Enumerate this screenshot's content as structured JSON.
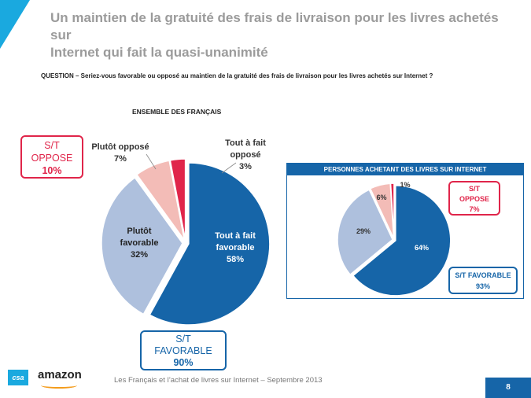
{
  "title_line1": "Un maintien de la gratuité des frais de livraison pour les livres achetés sur",
  "title_line2": "Internet qui fait la quasi-unanimité",
  "question": "QUESTION – Seriez-vous favorable ou opposé au maintien de la gratuité des frais de livraison pour les livres achetés sur Internet ?",
  "chart_data": [
    {
      "type": "pie",
      "title": "ENSEMBLE DES FRANÇAIS",
      "slices": [
        {
          "name": "Tout à fait favorable",
          "value": 58,
          "color": "#1665a8"
        },
        {
          "name": "Plutôt favorable",
          "value": 32,
          "color": "#aec0dd"
        },
        {
          "name": "Plutôt opposé",
          "value": 7,
          "color": "#f3bcb7"
        },
        {
          "name": "Tout à fait opposé",
          "value": 3,
          "color": "#e0254a"
        }
      ],
      "labels": {
        "tout_favorable": [
          "Tout à fait",
          "favorable",
          "58%"
        ],
        "plutot_favorable": [
          "Plutôt",
          "favorable",
          "32%"
        ],
        "plutot_oppose": [
          "Plutôt opposé",
          "7%"
        ],
        "tout_oppose": [
          "Tout à fait",
          "opposé",
          "3%"
        ]
      },
      "summary": {
        "oppose": [
          "S/T",
          "OPPOSE",
          "10%"
        ],
        "favorable": [
          "S/T",
          "FAVORABLE",
          "90%"
        ]
      }
    },
    {
      "type": "pie",
      "title": "PERSONNES ACHETANT DES LIVRES SUR INTERNET",
      "slices": [
        {
          "name": "Tout à fait favorable",
          "value": 64,
          "color": "#1665a8"
        },
        {
          "name": "Plutôt favorable",
          "value": 29,
          "color": "#aec0dd"
        },
        {
          "name": "Plutôt opposé",
          "value": 6,
          "color": "#f3bcb7"
        },
        {
          "name": "Tout à fait opposé",
          "value": 1,
          "color": "#e0254a"
        }
      ],
      "labels": {
        "v64": "64%",
        "v29": "29%",
        "v6": "6%",
        "v1": "1%"
      },
      "summary": {
        "oppose": [
          "S/T",
          "OPPOSE",
          "7%"
        ],
        "favorable": [
          "S/T FAVORABLE",
          "93%"
        ]
      }
    }
  ],
  "footer": "Les Français et l’achat de livres sur Internet – Septembre 2013",
  "logos": {
    "csa": "csa",
    "amazon": "amazon"
  },
  "page_number": "8"
}
